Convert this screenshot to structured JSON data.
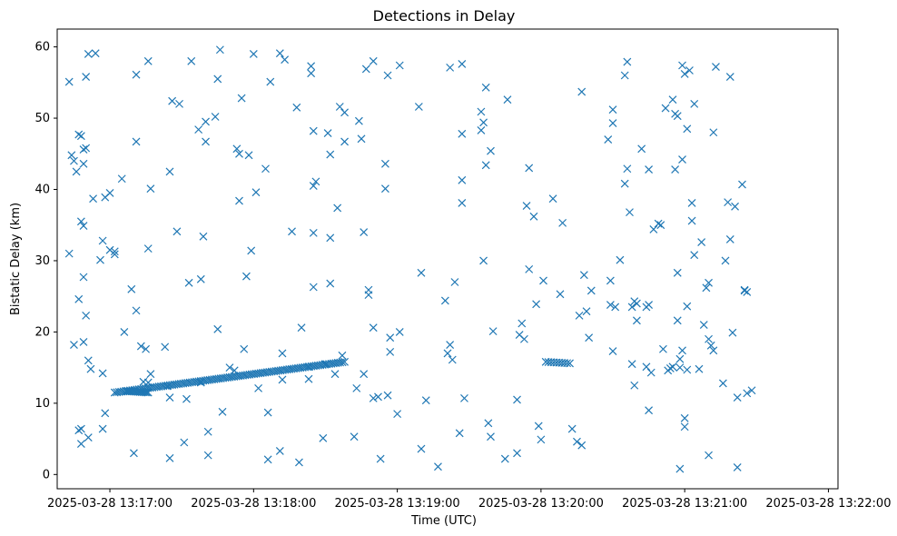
{
  "chart_data": {
    "type": "scatter",
    "title": "Detections in Delay",
    "xlabel": "Time (UTC)",
    "ylabel": "Bistatic Delay (km)",
    "marker": "x",
    "color": "#1f77b4",
    "xlim_seconds_after": [
      -22,
      304
    ],
    "x_reference": "2025-03-28 13:17:00",
    "x_unit": "seconds after 2025-03-28 13:17:00",
    "ylim": [
      -2,
      62.5
    ],
    "xticks": [
      0,
      60,
      120,
      180,
      240,
      300
    ],
    "xtick_labels": [
      "2025-03-28 13:17:00",
      "2025-03-28 13:18:00",
      "2025-03-28 13:19:00",
      "2025-03-28 13:20:00",
      "2025-03-28 13:21:00",
      "2025-03-28 13:22:00"
    ],
    "yticks": [
      0,
      10,
      20,
      30,
      40,
      50,
      60
    ],
    "ytick_labels": [
      "0",
      "10",
      "20",
      "30",
      "40",
      "50",
      "60"
    ],
    "track_segments": [
      {
        "x_start": 7,
        "x_end": 16,
        "y_start": 11.7,
        "y_end": 11.5,
        "count": 14
      },
      {
        "x_start": 2,
        "x_end": 98,
        "y_start": 11.5,
        "y_end": 15.8,
        "count": 105
      },
      {
        "x_start": 182,
        "x_end": 192,
        "y_start": 15.8,
        "y_end": 15.6,
        "count": 10
      }
    ],
    "points": [
      [
        -17,
        55.1
      ],
      [
        -16,
        44.8
      ],
      [
        -15,
        44.0
      ],
      [
        -14,
        42.5
      ],
      [
        -13,
        47.7
      ],
      [
        -12,
        47.5
      ],
      [
        -11,
        45.6
      ],
      [
        -10,
        45.8
      ],
      [
        -10,
        55.8
      ],
      [
        -9,
        59.0
      ],
      [
        -6,
        59.1
      ],
      [
        -17,
        31.0
      ],
      [
        -15,
        18.2
      ],
      [
        -13,
        24.6
      ],
      [
        -12,
        35.5
      ],
      [
        -11,
        34.9
      ],
      [
        -11,
        27.7
      ],
      [
        -10,
        22.3
      ],
      [
        -11,
        18.6
      ],
      [
        -9,
        16.0
      ],
      [
        -8,
        14.8
      ],
      [
        -13,
        6.2
      ],
      [
        -12,
        6.4
      ],
      [
        -12,
        4.3
      ],
      [
        -9,
        5.2
      ],
      [
        -11,
        43.6
      ],
      [
        -7,
        38.7
      ],
      [
        -4,
        30.1
      ],
      [
        -3,
        32.8
      ],
      [
        -2,
        38.9
      ],
      [
        0,
        39.5
      ],
      [
        2,
        31.3
      ],
      [
        -3,
        14.2
      ],
      [
        -3,
        6.4
      ],
      [
        -2,
        8.6
      ],
      [
        0,
        31.5
      ],
      [
        2,
        30.9
      ],
      [
        5,
        41.5
      ],
      [
        6,
        20.0
      ],
      [
        9,
        26.0
      ],
      [
        10,
        3.0
      ],
      [
        11,
        23.0
      ],
      [
        11,
        46.7
      ],
      [
        11,
        56.1
      ],
      [
        13,
        18.0
      ],
      [
        14,
        13.0
      ],
      [
        15,
        17.6
      ],
      [
        16,
        12.9
      ],
      [
        16,
        31.7
      ],
      [
        17,
        40.1
      ],
      [
        17,
        14.1
      ],
      [
        16,
        58.0
      ],
      [
        23,
        17.9
      ],
      [
        24,
        12.4
      ],
      [
        25,
        10.8
      ],
      [
        25,
        2.3
      ],
      [
        25,
        42.5
      ],
      [
        26,
        52.4
      ],
      [
        28,
        34.1
      ],
      [
        29,
        52.0
      ],
      [
        31,
        4.5
      ],
      [
        32,
        10.6
      ],
      [
        33,
        26.9
      ],
      [
        34,
        58.0
      ],
      [
        37,
        48.4
      ],
      [
        38,
        12.9
      ],
      [
        38,
        27.4
      ],
      [
        39,
        33.4
      ],
      [
        40,
        46.7
      ],
      [
        40,
        49.5
      ],
      [
        41,
        2.7
      ],
      [
        41,
        6.0
      ],
      [
        44,
        50.2
      ],
      [
        45,
        55.5
      ],
      [
        45,
        20.4
      ],
      [
        46,
        59.6
      ],
      [
        47,
        8.8
      ],
      [
        50,
        15.0
      ],
      [
        52,
        14.6
      ],
      [
        53,
        45.7
      ],
      [
        54,
        45.0
      ],
      [
        54,
        38.4
      ],
      [
        55,
        52.8
      ],
      [
        56,
        17.6
      ],
      [
        57,
        27.8
      ],
      [
        58,
        44.8
      ],
      [
        59,
        31.4
      ],
      [
        60,
        59.0
      ],
      [
        61,
        39.6
      ],
      [
        62,
        12.1
      ],
      [
        65,
        42.9
      ],
      [
        66,
        8.7
      ],
      [
        66,
        2.1
      ],
      [
        67,
        55.1
      ],
      [
        71,
        3.3
      ],
      [
        71,
        59.1
      ],
      [
        72,
        17.0
      ],
      [
        72,
        13.3
      ],
      [
        73,
        58.2
      ],
      [
        76,
        34.1
      ],
      [
        78,
        51.5
      ],
      [
        79,
        1.7
      ],
      [
        80,
        20.6
      ],
      [
        83,
        15.1
      ],
      [
        83,
        13.4
      ],
      [
        84,
        56.3
      ],
      [
        84,
        57.3
      ],
      [
        85,
        48.2
      ],
      [
        85,
        40.5
      ],
      [
        85,
        33.9
      ],
      [
        85,
        26.3
      ],
      [
        86,
        41.1
      ],
      [
        89,
        5.1
      ],
      [
        90,
        15.5
      ],
      [
        91,
        47.9
      ],
      [
        92,
        44.9
      ],
      [
        92,
        33.2
      ],
      [
        92,
        26.8
      ],
      [
        94,
        14.1
      ],
      [
        95,
        37.4
      ],
      [
        96,
        51.6
      ],
      [
        97,
        16.7
      ],
      [
        98,
        50.8
      ],
      [
        98,
        46.7
      ],
      [
        102,
        5.3
      ],
      [
        103,
        12.1
      ],
      [
        104,
        49.6
      ],
      [
        105,
        47.1
      ],
      [
        106,
        14.1
      ],
      [
        106,
        34.0
      ],
      [
        107,
        56.9
      ],
      [
        108,
        25.9
      ],
      [
        108,
        25.2
      ],
      [
        110,
        58.0
      ],
      [
        110,
        20.6
      ],
      [
        110,
        10.7
      ],
      [
        112,
        10.9
      ],
      [
        113,
        2.2
      ],
      [
        115,
        43.6
      ],
      [
        115,
        40.1
      ],
      [
        116,
        11.1
      ],
      [
        116,
        56.0
      ],
      [
        117,
        17.2
      ],
      [
        117,
        19.2
      ],
      [
        120,
        8.5
      ],
      [
        121,
        20.0
      ],
      [
        121,
        57.4
      ],
      [
        129,
        51.6
      ],
      [
        130,
        3.6
      ],
      [
        130,
        28.3
      ],
      [
        132,
        10.4
      ],
      [
        137,
        1.1
      ],
      [
        140,
        24.4
      ],
      [
        141,
        17.0
      ],
      [
        142,
        57.1
      ],
      [
        142,
        18.2
      ],
      [
        143,
        16.1
      ],
      [
        144,
        27.0
      ],
      [
        146,
        5.8
      ],
      [
        147,
        47.8
      ],
      [
        147,
        38.1
      ],
      [
        147,
        41.3
      ],
      [
        147,
        57.6
      ],
      [
        148,
        10.7
      ],
      [
        155,
        50.9
      ],
      [
        155,
        48.3
      ],
      [
        156,
        49.4
      ],
      [
        157,
        43.4
      ],
      [
        156,
        30.0
      ],
      [
        157,
        54.3
      ],
      [
        158,
        7.2
      ],
      [
        159,
        5.3
      ],
      [
        159,
        45.4
      ],
      [
        160,
        20.1
      ],
      [
        165,
        2.2
      ],
      [
        166,
        52.6
      ],
      [
        170,
        10.5
      ],
      [
        170,
        3.0
      ],
      [
        171,
        19.6
      ],
      [
        172,
        21.2
      ],
      [
        173,
        19.0
      ],
      [
        174,
        37.7
      ],
      [
        175,
        28.8
      ],
      [
        175,
        43.0
      ],
      [
        177,
        36.2
      ],
      [
        178,
        23.9
      ],
      [
        179,
        6.8
      ],
      [
        180,
        4.9
      ],
      [
        181,
        27.2
      ],
      [
        185,
        38.7
      ],
      [
        188,
        25.3
      ],
      [
        189,
        35.3
      ],
      [
        193,
        6.4
      ],
      [
        195,
        4.6
      ],
      [
        197,
        53.7
      ],
      [
        197,
        4.1
      ],
      [
        198,
        28.0
      ],
      [
        199,
        22.9
      ],
      [
        200,
        19.2
      ],
      [
        201,
        25.8
      ],
      [
        196,
        22.3
      ],
      [
        208,
        47.0
      ],
      [
        209,
        27.2
      ],
      [
        209,
        23.8
      ],
      [
        210,
        51.2
      ],
      [
        210,
        49.3
      ],
      [
        210,
        17.3
      ],
      [
        211,
        23.5
      ],
      [
        213,
        30.1
      ],
      [
        215,
        56.0
      ],
      [
        215,
        40.8
      ],
      [
        216,
        57.9
      ],
      [
        216,
        42.9
      ],
      [
        217,
        36.8
      ],
      [
        218,
        23.5
      ],
      [
        218,
        15.5
      ],
      [
        219,
        12.5
      ],
      [
        219,
        24.3
      ],
      [
        220,
        21.6
      ],
      [
        220,
        24.0
      ],
      [
        222,
        45.7
      ],
      [
        224,
        15.1
      ],
      [
        224,
        23.5
      ],
      [
        225,
        42.8
      ],
      [
        225,
        23.8
      ],
      [
        225,
        9.0
      ],
      [
        226,
        14.3
      ],
      [
        227,
        34.4
      ],
      [
        229,
        35.2
      ],
      [
        230,
        35.0
      ],
      [
        231,
        17.6
      ],
      [
        232,
        51.4
      ],
      [
        233,
        14.6
      ],
      [
        234,
        14.9
      ],
      [
        235,
        15.1
      ],
      [
        235,
        52.6
      ],
      [
        236,
        42.8
      ],
      [
        236,
        50.6
      ],
      [
        237,
        50.3
      ],
      [
        237,
        28.3
      ],
      [
        237,
        21.6
      ],
      [
        238,
        0.8
      ],
      [
        238,
        15.0
      ],
      [
        238,
        16.2
      ],
      [
        239,
        57.4
      ],
      [
        239,
        44.2
      ],
      [
        239,
        17.4
      ],
      [
        240,
        6.7
      ],
      [
        240,
        7.9
      ],
      [
        240,
        56.2
      ],
      [
        241,
        48.5
      ],
      [
        241,
        23.6
      ],
      [
        241,
        14.7
      ],
      [
        242,
        56.7
      ],
      [
        243,
        38.1
      ],
      [
        243,
        35.6
      ],
      [
        244,
        52.0
      ],
      [
        244,
        30.8
      ],
      [
        246,
        14.8
      ],
      [
        247,
        32.6
      ],
      [
        248,
        21.0
      ],
      [
        249,
        26.2
      ],
      [
        250,
        26.9
      ],
      [
        250,
        19.0
      ],
      [
        250,
        2.7
      ],
      [
        251,
        18.1
      ],
      [
        252,
        48.0
      ],
      [
        252,
        17.4
      ],
      [
        253,
        57.2
      ],
      [
        256,
        12.8
      ],
      [
        257,
        30.0
      ],
      [
        258,
        38.2
      ],
      [
        259,
        33.0
      ],
      [
        259,
        55.8
      ],
      [
        260,
        19.9
      ],
      [
        261,
        37.6
      ],
      [
        262,
        10.8
      ],
      [
        262,
        1.0
      ],
      [
        264,
        40.7
      ],
      [
        265,
        25.8
      ],
      [
        266,
        25.6
      ],
      [
        266,
        11.4
      ],
      [
        268,
        11.8
      ],
      [
        265,
        25.9
      ]
    ]
  }
}
